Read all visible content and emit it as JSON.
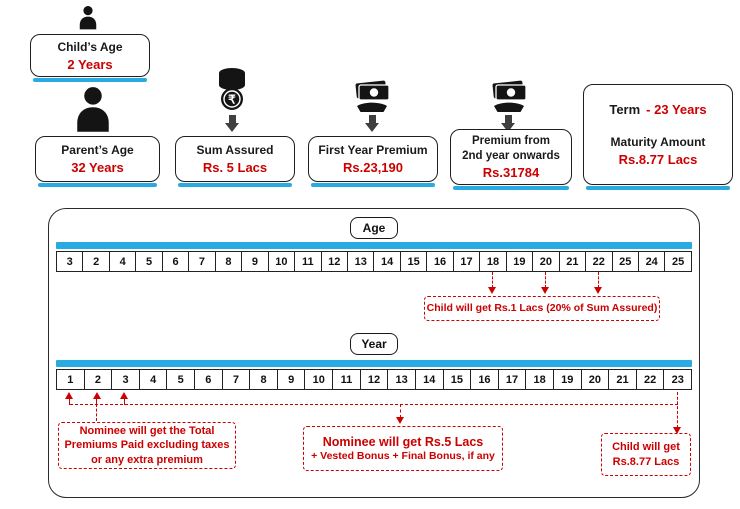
{
  "colors": {
    "red": "#cc0000",
    "blue": "#29abe2",
    "ink": "#1a1a1a",
    "arrow_grey": "#3f3f3f"
  },
  "icons": {
    "child": "person-icon",
    "parent": "person-icon",
    "sum_assured": "rupee-coins-icon",
    "first_year_premium": "cash-in-hand-icon",
    "premium_onwards": "cash-in-hand-icon",
    "connector": "down-arrow-icon"
  },
  "top": {
    "child": {
      "label": "Child’s Age",
      "value": "2 Years"
    },
    "parent": {
      "label": "Parent’s Age",
      "value": "32 Years"
    },
    "sum_assured": {
      "label": "Sum Assured",
      "value": "Rs. 5 Lacs"
    },
    "first_year_premium": {
      "label": "First Year Premium",
      "value": "Rs.23,190"
    },
    "premium_onwards": {
      "label_line1": "Premium from",
      "label_line2": "2nd year onwards",
      "value": "Rs.31784"
    },
    "term": {
      "label": "Term",
      "value": "- 23 Years"
    },
    "maturity": {
      "label": "Maturity Amount",
      "value": "Rs.8.77 Lacs"
    }
  },
  "timeline": {
    "age": {
      "label": "Age",
      "cells": [
        "3",
        "2",
        "4",
        "5",
        "6",
        "7",
        "8",
        "9",
        "10",
        "11",
        "12",
        "13",
        "14",
        "15",
        "16",
        "17",
        "18",
        "19",
        "20",
        "21",
        "22",
        "25",
        "24",
        "25"
      ]
    },
    "year": {
      "label": "Year",
      "cells": [
        "1",
        "2",
        "3",
        "4",
        "5",
        "6",
        "7",
        "8",
        "9",
        "10",
        "11",
        "12",
        "13",
        "14",
        "15",
        "16",
        "17",
        "18",
        "19",
        "20",
        "21",
        "22",
        "23"
      ]
    },
    "notes": {
      "age_payout": "Child will get Rs.1 Lacs (20% of Sum Assured)",
      "nominee_premiums": {
        "line1": "Nominee will get the Total",
        "line2": "Premiums Paid excluding taxes",
        "line3": "or any extra premium"
      },
      "nominee_sum": {
        "line1": "Nominee will get Rs.5 Lacs",
        "line2": "+ Vested Bonus + Final Bonus, if any"
      },
      "maturity": {
        "line1": "Child will get",
        "line2": "Rs.8.77 Lacs"
      }
    }
  }
}
